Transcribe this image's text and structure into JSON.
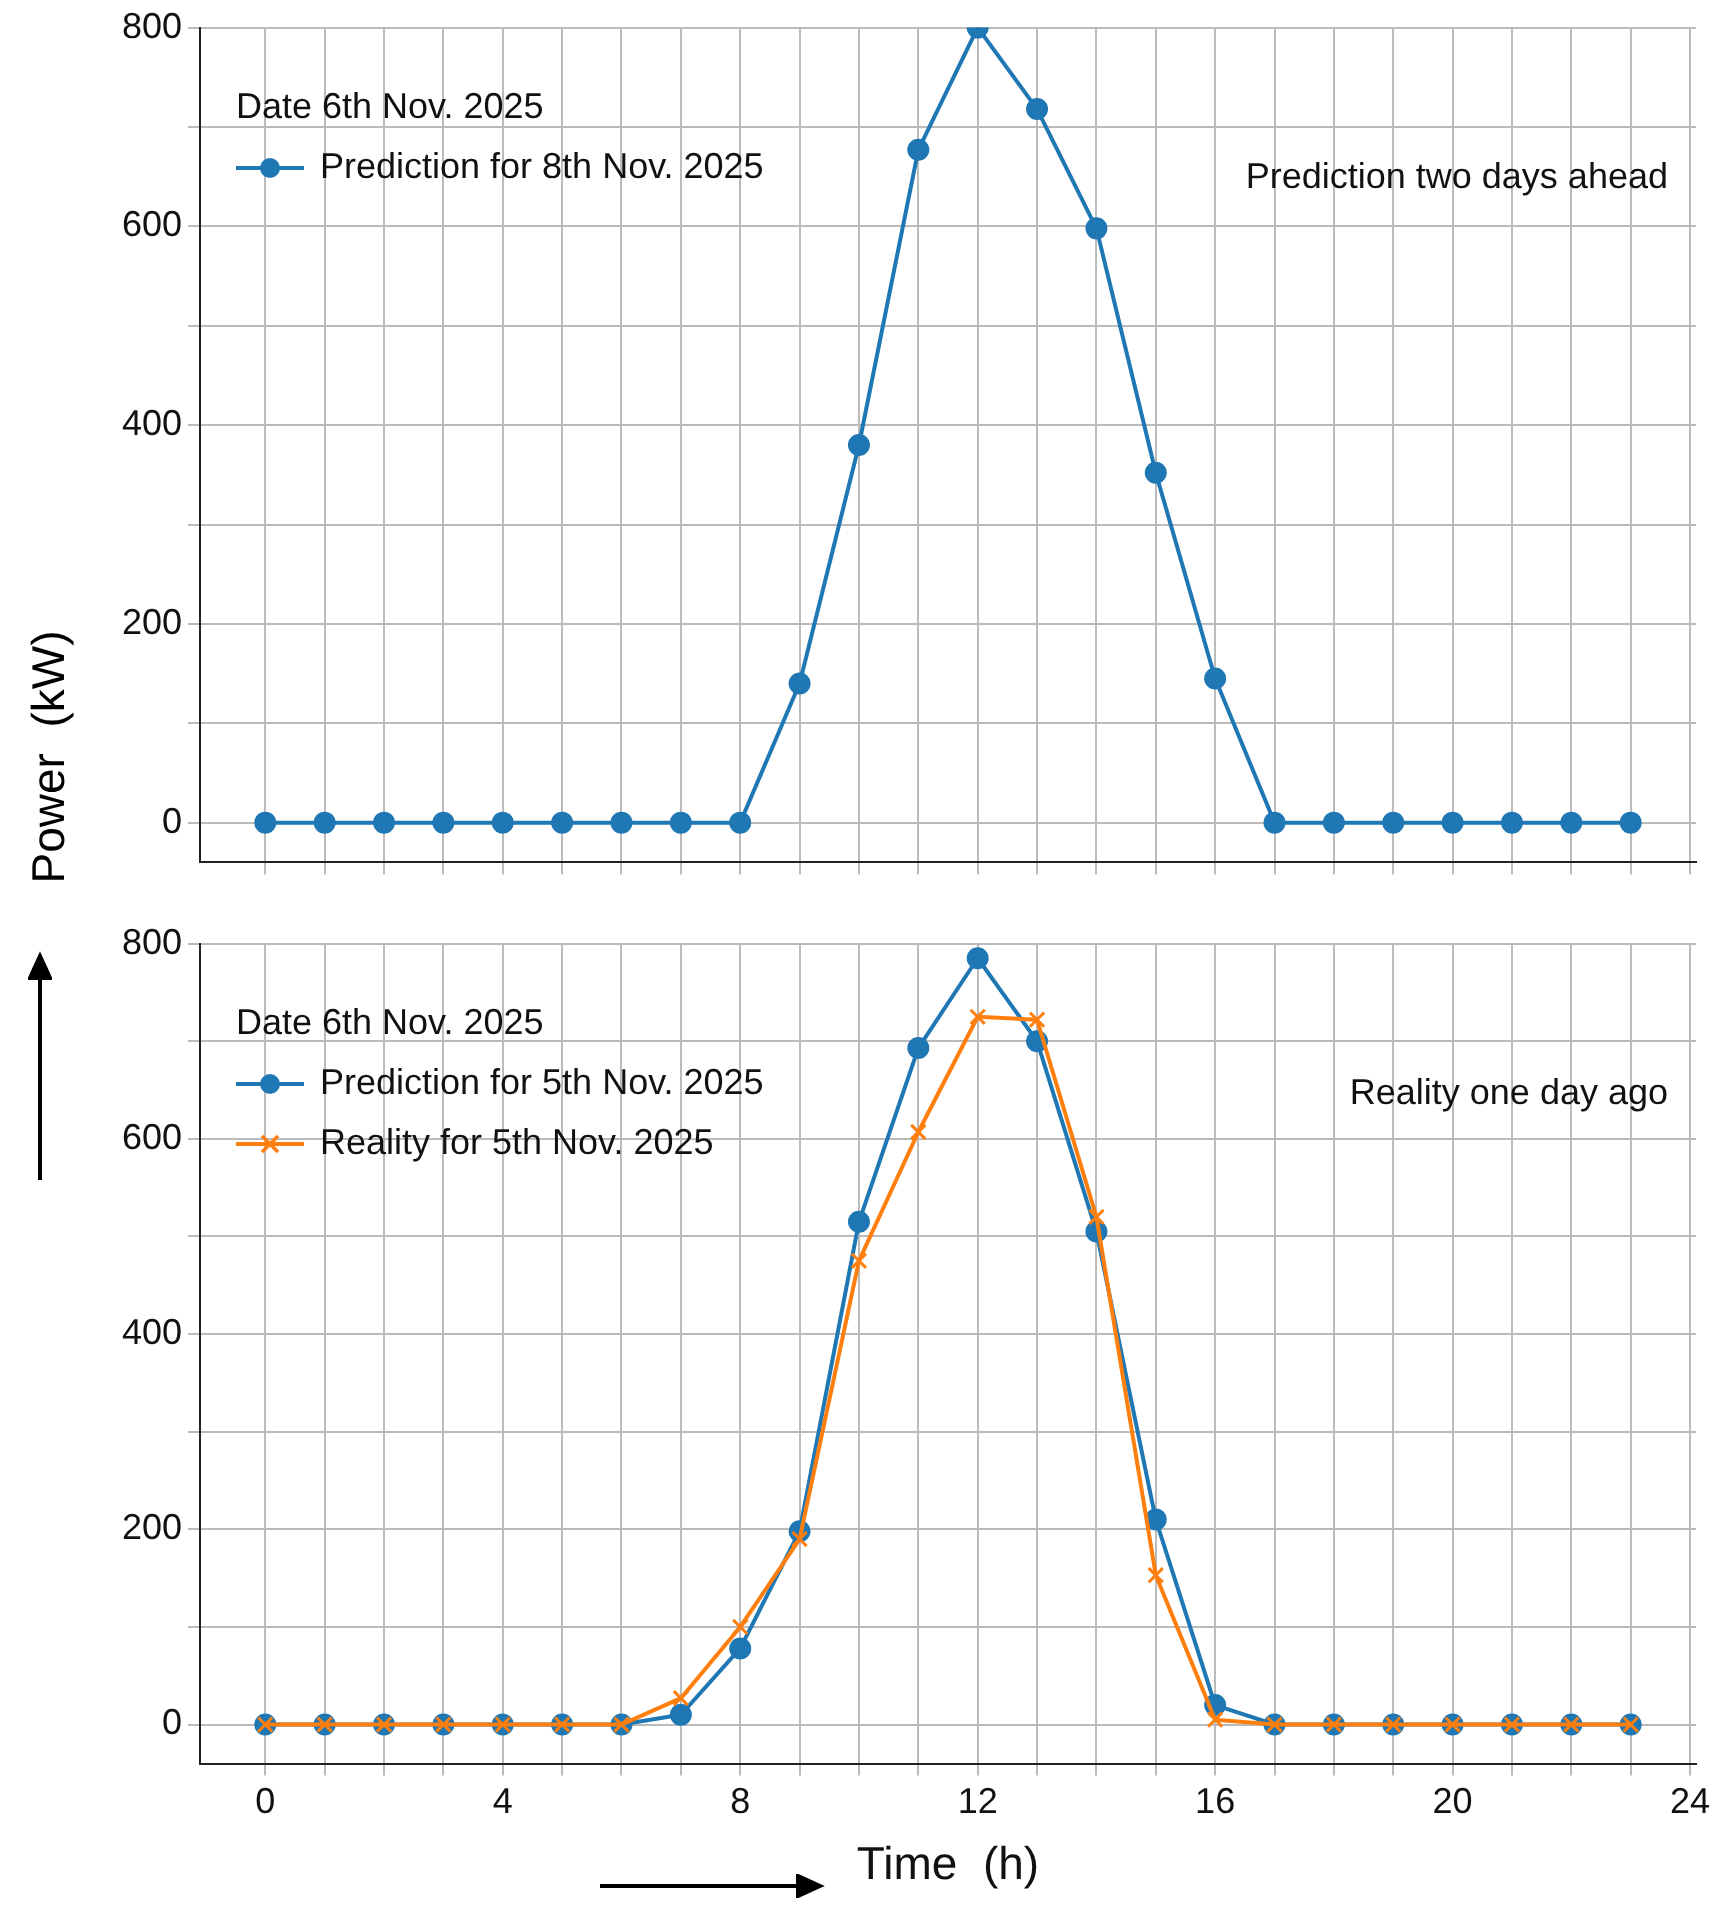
{
  "chart_data": [
    {
      "type": "line",
      "legend_title": "Date 6th Nov. 2025",
      "ylabel": "Power  (kW)",
      "annotations": [
        "Prediction two days ahead"
      ],
      "x": [
        0,
        1,
        2,
        3,
        4,
        5,
        6,
        7,
        8,
        9,
        10,
        11,
        12,
        13,
        14,
        15,
        16,
        17,
        18,
        19,
        20,
        21,
        22,
        23
      ],
      "series": [
        {
          "name": "Prediction for 8th Nov. 2025",
          "color": "#1f77b4",
          "marker": "circle",
          "values": [
            0,
            0,
            0,
            0,
            0,
            0,
            0,
            0,
            0,
            140,
            380,
            677,
            800,
            718,
            598,
            352,
            145,
            0,
            0,
            0,
            0,
            0,
            0,
            0
          ]
        }
      ],
      "xlim": [
        -1.1,
        24.1
      ],
      "ylim": [
        -40,
        800
      ],
      "xticks": [
        0,
        {
          "value": 1,
          "label": null
        },
        {
          "value": 2,
          "label": null
        },
        {
          "value": 3,
          "label": null
        },
        4,
        {
          "value": 5,
          "label": null
        },
        {
          "value": 6,
          "label": null
        },
        {
          "value": 7,
          "label": null
        },
        8,
        {
          "value": 9,
          "label": null
        },
        {
          "value": 10,
          "label": null
        },
        {
          "value": 11,
          "label": null
        },
        12,
        {
          "value": 13,
          "label": null
        },
        {
          "value": 14,
          "label": null
        },
        {
          "value": 15,
          "label": null
        },
        16,
        {
          "value": 17,
          "label": null
        },
        {
          "value": 18,
          "label": null
        },
        {
          "value": 19,
          "label": null
        },
        20,
        {
          "value": 21,
          "label": null
        },
        {
          "value": 22,
          "label": null
        },
        {
          "value": 23,
          "label": null
        },
        24
      ],
      "yticks": [
        0,
        {
          "value": 100,
          "label": null
        },
        200,
        {
          "value": 300,
          "label": null
        },
        400,
        {
          "value": 500,
          "label": null
        },
        600,
        {
          "value": 700,
          "label": null
        },
        800
      ],
      "grid": true,
      "legend": "top left",
      "tick_labels": "y",
      "line_style": "solid"
    },
    {
      "type": "line",
      "legend_title": "Date 6th Nov. 2025",
      "xlabel": "Time  (h)",
      "annotations": [
        "Reality one day ago"
      ],
      "x": [
        0,
        1,
        2,
        3,
        4,
        5,
        6,
        7,
        8,
        9,
        10,
        11,
        12,
        13,
        14,
        15,
        16,
        17,
        18,
        19,
        20,
        21,
        22,
        23
      ],
      "series": [
        {
          "name": "Prediction for 5th Nov. 2025",
          "color": "#1f77b4",
          "marker": "circle",
          "values": [
            0,
            0,
            0,
            0,
            0,
            0,
            0,
            10,
            78,
            198,
            515,
            693,
            785,
            700,
            505,
            210,
            20,
            0,
            0,
            0,
            0,
            0,
            0,
            0
          ]
        },
        {
          "name": "Reality for 5th Nov. 2025",
          "color": "#ff7f0e",
          "marker": "cross",
          "values": [
            0,
            0,
            0,
            0,
            0,
            0,
            0,
            27,
            100,
            190,
            475,
            607,
            725,
            722,
            520,
            153,
            5,
            0,
            0,
            0,
            0,
            0,
            0,
            0
          ]
        }
      ],
      "xlim": [
        -1.1,
        24.1
      ],
      "ylim": [
        -40,
        800
      ],
      "xticks": [
        0,
        {
          "value": 1,
          "label": null
        },
        {
          "value": 2,
          "label": null
        },
        {
          "value": 3,
          "label": null
        },
        4,
        {
          "value": 5,
          "label": null
        },
        {
          "value": 6,
          "label": null
        },
        {
          "value": 7,
          "label": null
        },
        8,
        {
          "value": 9,
          "label": null
        },
        {
          "value": 10,
          "label": null
        },
        {
          "value": 11,
          "label": null
        },
        12,
        {
          "value": 13,
          "label": null
        },
        {
          "value": 14,
          "label": null
        },
        {
          "value": 15,
          "label": null
        },
        16,
        {
          "value": 17,
          "label": null
        },
        {
          "value": 18,
          "label": null
        },
        {
          "value": 19,
          "label": null
        },
        20,
        {
          "value": 21,
          "label": null
        },
        {
          "value": 22,
          "label": null
        },
        {
          "value": 23,
          "label": null
        },
        24
      ],
      "yticks": [
        0,
        {
          "value": 100,
          "label": null
        },
        200,
        {
          "value": 300,
          "label": null
        },
        400,
        {
          "value": 500,
          "label": null
        },
        600,
        {
          "value": 700,
          "label": null
        },
        800
      ],
      "grid": true,
      "legend": "top left",
      "line_style": "solid"
    }
  ]
}
